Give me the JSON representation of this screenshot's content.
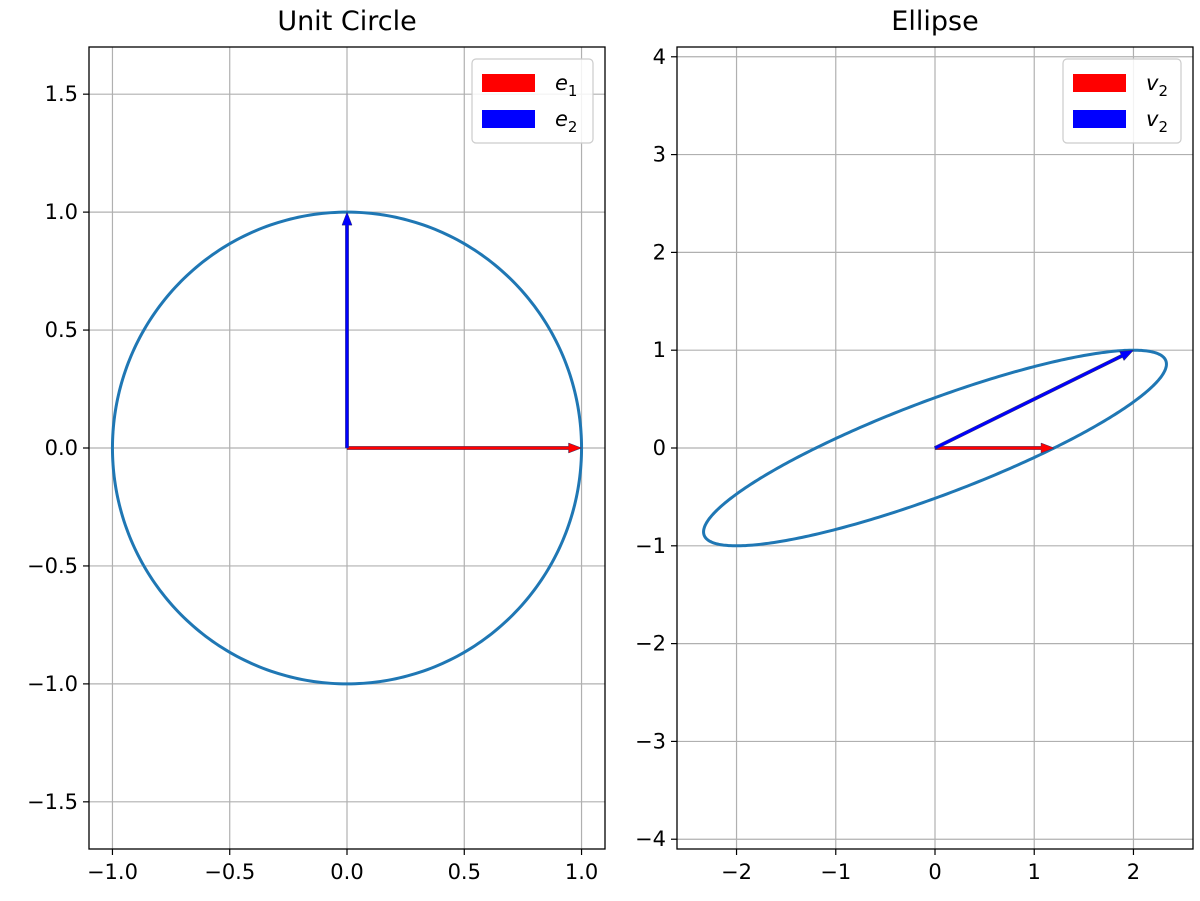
{
  "chart_data": [
    {
      "type": "line",
      "title": "Unit Circle",
      "xlabel": "",
      "ylabel": "",
      "xlim": [
        -1.1,
        1.1
      ],
      "ylim": [
        -1.7,
        1.7
      ],
      "grid": true,
      "xticks": [
        -1.0,
        -0.5,
        0.0,
        0.5,
        1.0
      ],
      "xtick_labels": [
        "−1.0",
        "−0.5",
        "0.0",
        "0.5",
        "1.0"
      ],
      "yticks": [
        -1.5,
        -1.0,
        -0.5,
        0.0,
        0.5,
        1.0,
        1.5
      ],
      "ytick_labels": [
        "−1.5",
        "−1.0",
        "−0.5",
        "0.0",
        "0.5",
        "1.0",
        "1.5"
      ],
      "curve": {
        "kind": "ellipse",
        "center": [
          0,
          0
        ],
        "matrix": [
          [
            1,
            0
          ],
          [
            0,
            1
          ]
        ],
        "color": "#1f77b4"
      },
      "vectors": [
        {
          "name": "e",
          "subscript": "1",
          "from": [
            0,
            0
          ],
          "to": [
            1,
            0
          ],
          "color": "#ff0000"
        },
        {
          "name": "e",
          "subscript": "2",
          "from": [
            0,
            0
          ],
          "to": [
            0,
            1
          ],
          "color": "#0000ff"
        }
      ],
      "legend": {
        "placement": "upper right",
        "entries": [
          {
            "name": "e",
            "subscript": "1",
            "color": "#ff0000"
          },
          {
            "name": "e",
            "subscript": "2",
            "color": "#0000ff"
          }
        ]
      }
    },
    {
      "type": "line",
      "title": "Ellipse",
      "xlabel": "",
      "ylabel": "",
      "xlim": [
        -2.6,
        2.6
      ],
      "ylim": [
        -4.1,
        4.1
      ],
      "grid": true,
      "xticks": [
        -2,
        -1,
        0,
        1,
        2
      ],
      "xtick_labels": [
        "−2",
        "−1",
        "0",
        "1",
        "2"
      ],
      "yticks": [
        -4,
        -3,
        -2,
        -1,
        0,
        1,
        2,
        3,
        4
      ],
      "ytick_labels": [
        "−4",
        "−3",
        "−2",
        "−1",
        "0",
        "1",
        "2",
        "3",
        "4"
      ],
      "curve": {
        "kind": "ellipse",
        "center": [
          0,
          0
        ],
        "matrix": [
          [
            1.2,
            2
          ],
          [
            0,
            1
          ]
        ],
        "color": "#1f77b4"
      },
      "vectors": [
        {
          "name": "v",
          "subscript": "2",
          "from": [
            0,
            0
          ],
          "to": [
            1.2,
            0
          ],
          "color": "#ff0000"
        },
        {
          "name": "v",
          "subscript": "2",
          "from": [
            0,
            0
          ],
          "to": [
            2,
            1
          ],
          "color": "#0000ff"
        }
      ],
      "legend": {
        "placement": "upper right",
        "entries": [
          {
            "name": "v",
            "subscript": "2",
            "color": "#ff0000"
          },
          {
            "name": "v",
            "subscript": "2",
            "color": "#0000ff"
          }
        ]
      }
    }
  ]
}
